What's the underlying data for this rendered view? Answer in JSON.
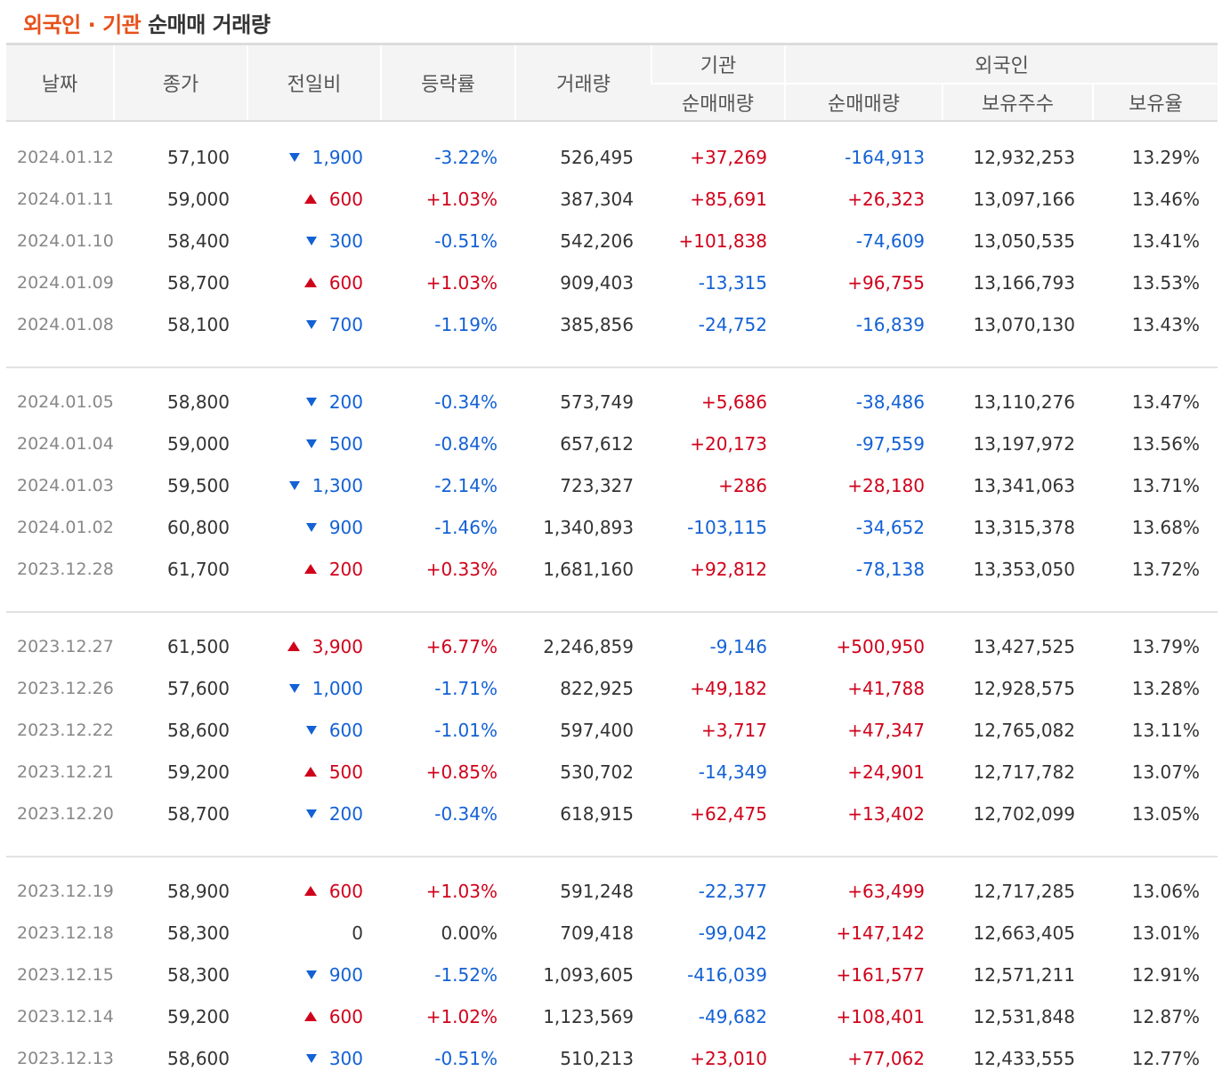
{
  "title": {
    "highlight": "외국인 · 기관",
    "rest": " 순매매 거래량"
  },
  "colors": {
    "accent": "#e8501a",
    "up": "#d0021b",
    "down": "#1361d5"
  },
  "headers": {
    "date": "날짜",
    "close": "종가",
    "change": "전일비",
    "rate": "등락률",
    "volume": "거래량",
    "inst": "기관",
    "foreign": "외국인",
    "inst_net": "순매매량",
    "foreign_net": "순매매량",
    "holdings": "보유주수",
    "ratio": "보유율"
  },
  "groups": [
    [
      {
        "date": "2024.01.12",
        "close": "57,100",
        "dir": "down",
        "change": "1,900",
        "rate": "-3.22%",
        "volume": "526,495",
        "inst": "+37,269",
        "foreign": "-164,913",
        "holdings": "12,932,253",
        "ratio": "13.29%"
      },
      {
        "date": "2024.01.11",
        "close": "59,000",
        "dir": "up",
        "change": "600",
        "rate": "+1.03%",
        "volume": "387,304",
        "inst": "+85,691",
        "foreign": "+26,323",
        "holdings": "13,097,166",
        "ratio": "13.46%"
      },
      {
        "date": "2024.01.10",
        "close": "58,400",
        "dir": "down",
        "change": "300",
        "rate": "-0.51%",
        "volume": "542,206",
        "inst": "+101,838",
        "foreign": "-74,609",
        "holdings": "13,050,535",
        "ratio": "13.41%"
      },
      {
        "date": "2024.01.09",
        "close": "58,700",
        "dir": "up",
        "change": "600",
        "rate": "+1.03%",
        "volume": "909,403",
        "inst": "-13,315",
        "foreign": "+96,755",
        "holdings": "13,166,793",
        "ratio": "13.53%"
      },
      {
        "date": "2024.01.08",
        "close": "58,100",
        "dir": "down",
        "change": "700",
        "rate": "-1.19%",
        "volume": "385,856",
        "inst": "-24,752",
        "foreign": "-16,839",
        "holdings": "13,070,130",
        "ratio": "13.43%"
      }
    ],
    [
      {
        "date": "2024.01.05",
        "close": "58,800",
        "dir": "down",
        "change": "200",
        "rate": "-0.34%",
        "volume": "573,749",
        "inst": "+5,686",
        "foreign": "-38,486",
        "holdings": "13,110,276",
        "ratio": "13.47%"
      },
      {
        "date": "2024.01.04",
        "close": "59,000",
        "dir": "down",
        "change": "500",
        "rate": "-0.84%",
        "volume": "657,612",
        "inst": "+20,173",
        "foreign": "-97,559",
        "holdings": "13,197,972",
        "ratio": "13.56%"
      },
      {
        "date": "2024.01.03",
        "close": "59,500",
        "dir": "down",
        "change": "1,300",
        "rate": "-2.14%",
        "volume": "723,327",
        "inst": "+286",
        "foreign": "+28,180",
        "holdings": "13,341,063",
        "ratio": "13.71%"
      },
      {
        "date": "2024.01.02",
        "close": "60,800",
        "dir": "down",
        "change": "900",
        "rate": "-1.46%",
        "volume": "1,340,893",
        "inst": "-103,115",
        "foreign": "-34,652",
        "holdings": "13,315,378",
        "ratio": "13.68%"
      },
      {
        "date": "2023.12.28",
        "close": "61,700",
        "dir": "up",
        "change": "200",
        "rate": "+0.33%",
        "volume": "1,681,160",
        "inst": "+92,812",
        "foreign": "-78,138",
        "holdings": "13,353,050",
        "ratio": "13.72%"
      }
    ],
    [
      {
        "date": "2023.12.27",
        "close": "61,500",
        "dir": "up",
        "change": "3,900",
        "rate": "+6.77%",
        "volume": "2,246,859",
        "inst": "-9,146",
        "foreign": "+500,950",
        "holdings": "13,427,525",
        "ratio": "13.79%"
      },
      {
        "date": "2023.12.26",
        "close": "57,600",
        "dir": "down",
        "change": "1,000",
        "rate": "-1.71%",
        "volume": "822,925",
        "inst": "+49,182",
        "foreign": "+41,788",
        "holdings": "12,928,575",
        "ratio": "13.28%"
      },
      {
        "date": "2023.12.22",
        "close": "58,600",
        "dir": "down",
        "change": "600",
        "rate": "-1.01%",
        "volume": "597,400",
        "inst": "+3,717",
        "foreign": "+47,347",
        "holdings": "12,765,082",
        "ratio": "13.11%"
      },
      {
        "date": "2023.12.21",
        "close": "59,200",
        "dir": "up",
        "change": "500",
        "rate": "+0.85%",
        "volume": "530,702",
        "inst": "-14,349",
        "foreign": "+24,901",
        "holdings": "12,717,782",
        "ratio": "13.07%"
      },
      {
        "date": "2023.12.20",
        "close": "58,700",
        "dir": "down",
        "change": "200",
        "rate": "-0.34%",
        "volume": "618,915",
        "inst": "+62,475",
        "foreign": "+13,402",
        "holdings": "12,702,099",
        "ratio": "13.05%"
      }
    ],
    [
      {
        "date": "2023.12.19",
        "close": "58,900",
        "dir": "up",
        "change": "600",
        "rate": "+1.03%",
        "volume": "591,248",
        "inst": "-22,377",
        "foreign": "+63,499",
        "holdings": "12,717,285",
        "ratio": "13.06%"
      },
      {
        "date": "2023.12.18",
        "close": "58,300",
        "dir": "none",
        "change": "0",
        "rate": "0.00%",
        "volume": "709,418",
        "inst": "-99,042",
        "foreign": "+147,142",
        "holdings": "12,663,405",
        "ratio": "13.01%"
      },
      {
        "date": "2023.12.15",
        "close": "58,300",
        "dir": "down",
        "change": "900",
        "rate": "-1.52%",
        "volume": "1,093,605",
        "inst": "-416,039",
        "foreign": "+161,577",
        "holdings": "12,571,211",
        "ratio": "12.91%"
      },
      {
        "date": "2023.12.14",
        "close": "59,200",
        "dir": "up",
        "change": "600",
        "rate": "+1.02%",
        "volume": "1,123,569",
        "inst": "-49,682",
        "foreign": "+108,401",
        "holdings": "12,531,848",
        "ratio": "12.87%"
      },
      {
        "date": "2023.12.13",
        "close": "58,600",
        "dir": "down",
        "change": "300",
        "rate": "-0.51%",
        "volume": "510,213",
        "inst": "+23,010",
        "foreign": "+77,062",
        "holdings": "12,433,555",
        "ratio": "12.77%"
      }
    ]
  ]
}
